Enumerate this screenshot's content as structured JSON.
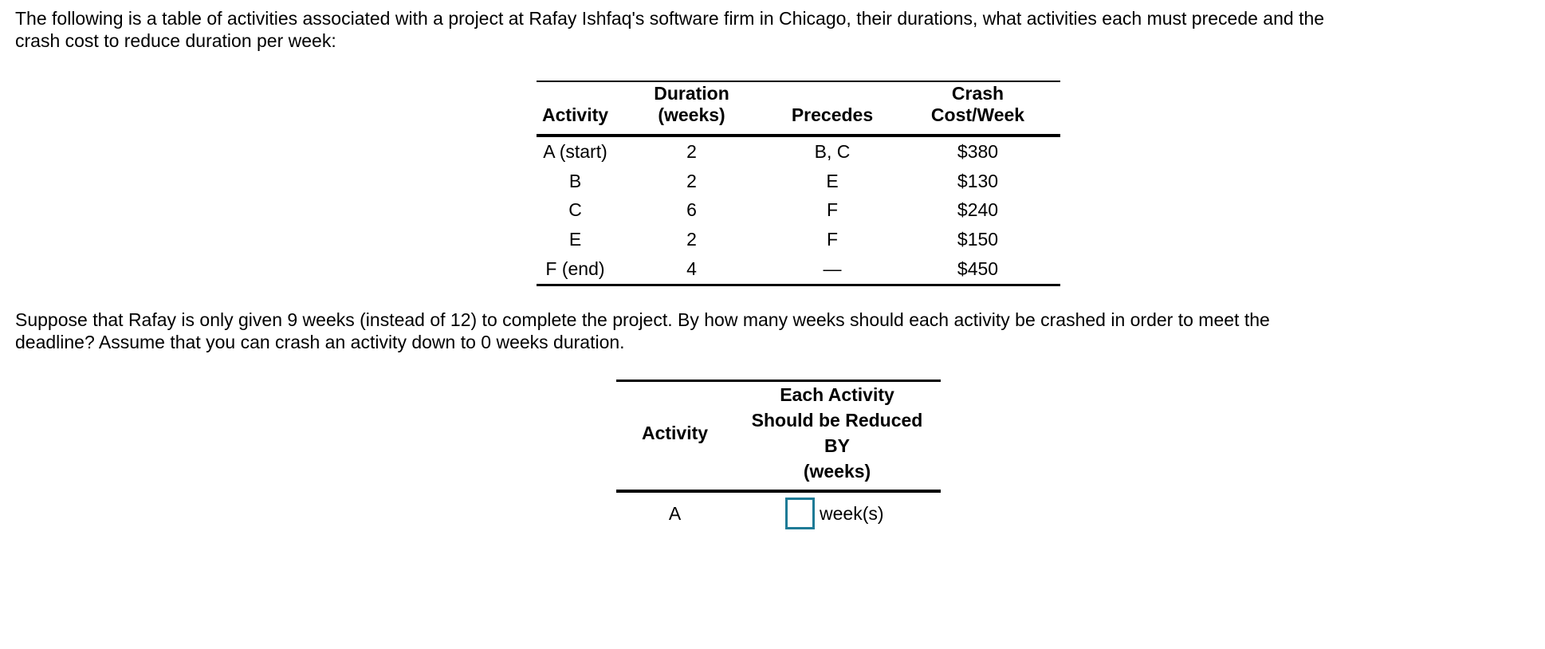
{
  "intro": {
    "line1": "The following is a table of activities associated with a project at Rafay Ishfaq's software firm in Chicago, their durations, what activities each must precede and the",
    "line2": "crash cost to reduce duration per week:"
  },
  "activity_table": {
    "headers": {
      "activity": "Activity",
      "duration_line1": "Duration",
      "duration_line2": "(weeks)",
      "precedes": "Precedes",
      "crash_line1": "Crash",
      "crash_line2": "Cost/Week"
    },
    "rows": [
      {
        "activity": "A (start)",
        "duration": "2",
        "precedes": "B, C",
        "crash_cost": "$380"
      },
      {
        "activity": "B",
        "duration": "2",
        "precedes": "E",
        "crash_cost": "$130"
      },
      {
        "activity": "C",
        "duration": "6",
        "precedes": "F",
        "crash_cost": "$240"
      },
      {
        "activity": "E",
        "duration": "2",
        "precedes": "F",
        "crash_cost": "$150"
      },
      {
        "activity": "F (end)",
        "duration": "4",
        "precedes": "—",
        "crash_cost": "$450"
      }
    ]
  },
  "question": {
    "line1": "Suppose that Rafay is only given 9 weeks (instead of 12) to complete the project. By how many weeks should each activity be crashed in order to meet the",
    "line2": "deadline? Assume that you can crash an activity down to 0 weeks duration."
  },
  "answer_table": {
    "headers": {
      "activity": "Activity",
      "reduce_line1": "Each Activity",
      "reduce_line2": "Should be Reduced",
      "reduce_line3": "BY",
      "reduce_line4": "(weeks)"
    },
    "row": {
      "activity": "A",
      "input_value": "",
      "unit": "week(s)"
    }
  },
  "colors": {
    "text": "#000000",
    "answer_input_border": "#1e7b96"
  }
}
